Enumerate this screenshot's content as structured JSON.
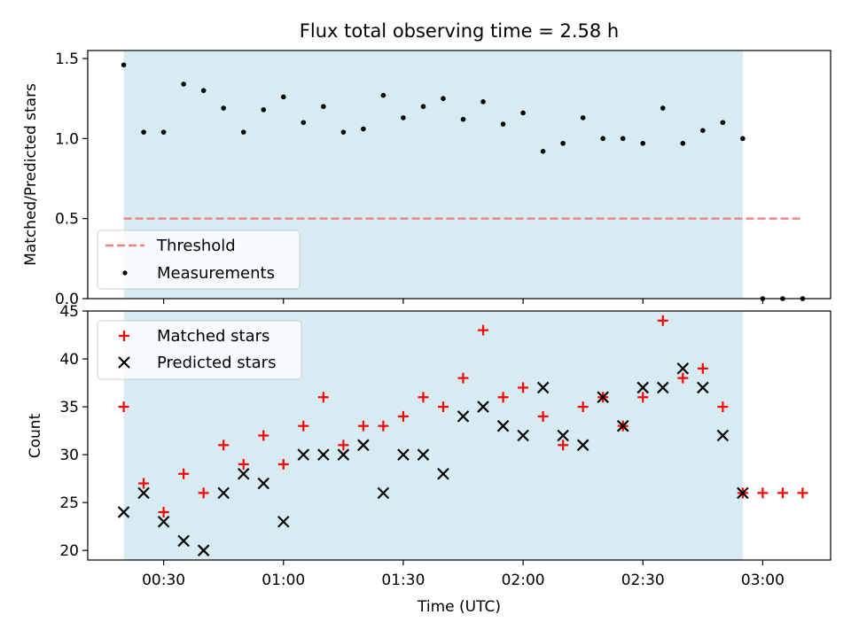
{
  "chart_data": [
    {
      "type": "scatter",
      "title": "Flux total observing time = 2.58 h",
      "ylabel": "Matched/Predicted stars",
      "xlabel": "",
      "ylim": [
        0,
        1.55
      ],
      "xlim": [
        "00:11",
        "03:17"
      ],
      "yticks": [
        0.0,
        0.5,
        1.0,
        1.5
      ],
      "ytick_labels": [
        "0.0",
        "0.5",
        "1.0",
        "1.5"
      ],
      "grid": false,
      "legend": {
        "position": "lower-left",
        "entries": [
          "Threshold",
          "Measurements"
        ]
      },
      "shaded_span": {
        "from": "00:20",
        "to": "02:55",
        "color": "#add8e6"
      },
      "threshold": {
        "name": "Threshold",
        "value": 0.5,
        "from": "00:20",
        "to": "03:10",
        "color": "#f08080",
        "style": "dashed"
      },
      "series": [
        {
          "name": "Measurements",
          "color": "#000000",
          "marker": "dot",
          "x": [
            "00:20",
            "00:25",
            "00:30",
            "00:35",
            "00:40",
            "00:45",
            "00:50",
            "00:55",
            "01:00",
            "01:05",
            "01:10",
            "01:15",
            "01:20",
            "01:25",
            "01:30",
            "01:35",
            "01:40",
            "01:45",
            "01:50",
            "01:55",
            "02:00",
            "02:05",
            "02:10",
            "02:15",
            "02:20",
            "02:25",
            "02:30",
            "02:35",
            "02:40",
            "02:45",
            "02:50",
            "02:55",
            "03:00",
            "03:05",
            "03:10"
          ],
          "values": [
            1.46,
            1.04,
            1.04,
            1.34,
            1.3,
            1.19,
            1.04,
            1.18,
            1.26,
            1.1,
            1.2,
            1.04,
            1.06,
            1.27,
            1.13,
            1.2,
            1.25,
            1.12,
            1.23,
            1.09,
            1.16,
            0.92,
            0.97,
            1.13,
            1.0,
            1.0,
            0.97,
            1.19,
            0.97,
            1.05,
            1.1,
            1.0,
            0.0,
            0.0,
            0.0
          ]
        }
      ]
    },
    {
      "type": "scatter",
      "title": "",
      "ylabel": "Count",
      "xlabel": "Time (UTC)",
      "ylim": [
        19,
        45
      ],
      "xlim": [
        "00:11",
        "03:17"
      ],
      "yticks": [
        20,
        25,
        30,
        35,
        40,
        45
      ],
      "ytick_labels": [
        "20",
        "25",
        "30",
        "35",
        "40",
        "45"
      ],
      "xticks": [
        "00:30",
        "01:00",
        "01:30",
        "02:00",
        "02:30",
        "03:00"
      ],
      "xtick_labels": [
        "00:30",
        "01:00",
        "01:30",
        "02:00",
        "02:30",
        "03:00"
      ],
      "grid": false,
      "legend": {
        "position": "upper-left",
        "entries": [
          "Matched stars",
          "Predicted stars"
        ]
      },
      "shaded_span": {
        "from": "00:20",
        "to": "02:55",
        "color": "#add8e6"
      },
      "series": [
        {
          "name": "Matched stars",
          "color": "#ff0000",
          "marker": "plus",
          "x": [
            "00:20",
            "00:25",
            "00:30",
            "00:35",
            "00:40",
            "00:45",
            "00:50",
            "00:55",
            "01:00",
            "01:05",
            "01:10",
            "01:15",
            "01:20",
            "01:25",
            "01:30",
            "01:35",
            "01:40",
            "01:45",
            "01:50",
            "01:55",
            "02:00",
            "02:05",
            "02:10",
            "02:15",
            "02:20",
            "02:25",
            "02:30",
            "02:35",
            "02:40",
            "02:45",
            "02:50",
            "02:55",
            "03:00",
            "03:05",
            "03:10"
          ],
          "values": [
            35,
            27,
            24,
            28,
            26,
            31,
            29,
            32,
            29,
            33,
            36,
            31,
            33,
            33,
            34,
            36,
            35,
            38,
            43,
            36,
            37,
            34,
            31,
            35,
            36,
            33,
            36,
            44,
            38,
            39,
            35,
            26,
            26,
            26,
            26
          ]
        },
        {
          "name": "Predicted stars",
          "color": "#000000",
          "marker": "x",
          "x": [
            "00:20",
            "00:25",
            "00:30",
            "00:35",
            "00:40",
            "00:45",
            "00:50",
            "00:55",
            "01:00",
            "01:05",
            "01:10",
            "01:15",
            "01:20",
            "01:25",
            "01:30",
            "01:35",
            "01:40",
            "01:45",
            "01:50",
            "01:55",
            "02:00",
            "02:05",
            "02:10",
            "02:15",
            "02:20",
            "02:25",
            "02:30",
            "02:35",
            "02:40",
            "02:45",
            "02:50",
            "02:55"
          ],
          "values": [
            24,
            26,
            23,
            21,
            20,
            26,
            28,
            27,
            23,
            30,
            30,
            30,
            31,
            26,
            30,
            30,
            28,
            34,
            35,
            33,
            32,
            37,
            32,
            31,
            36,
            33,
            37,
            37,
            39,
            37,
            32,
            26
          ]
        }
      ]
    }
  ]
}
